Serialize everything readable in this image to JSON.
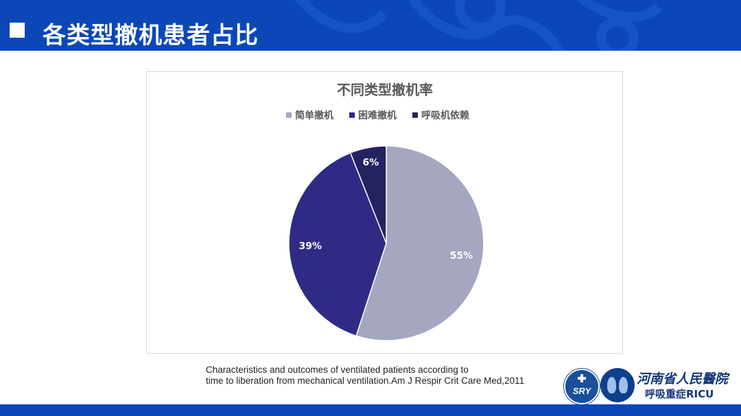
{
  "slide": {
    "title": "各类型撤机患者占比",
    "citation_line1": "Characteristics and outcomes of ventilated patients according to",
    "citation_line2": "time to liberation from mechanical ventilation.Am J Respir Crit Care Med,2011"
  },
  "logos": {
    "sry_text": "SRY",
    "org_name": "河南省人民醫院",
    "dept_name": "呼吸重症RICU"
  },
  "colors": {
    "header": "#0c47b8",
    "simple": "#a5a6c0",
    "difficult": "#2f2b85",
    "prolonged": "#24225f"
  },
  "chart_data": {
    "type": "pie",
    "title": "不同类型撤机率",
    "legend_position": "top",
    "categories": [
      "简单撤机",
      "困难撤机",
      "呼吸机依赖"
    ],
    "values": [
      55,
      39,
      6
    ],
    "labels": [
      "55%",
      "39%",
      "6%"
    ],
    "colors": [
      "#a5a6c0",
      "#2f2b85",
      "#24225f"
    ]
  }
}
